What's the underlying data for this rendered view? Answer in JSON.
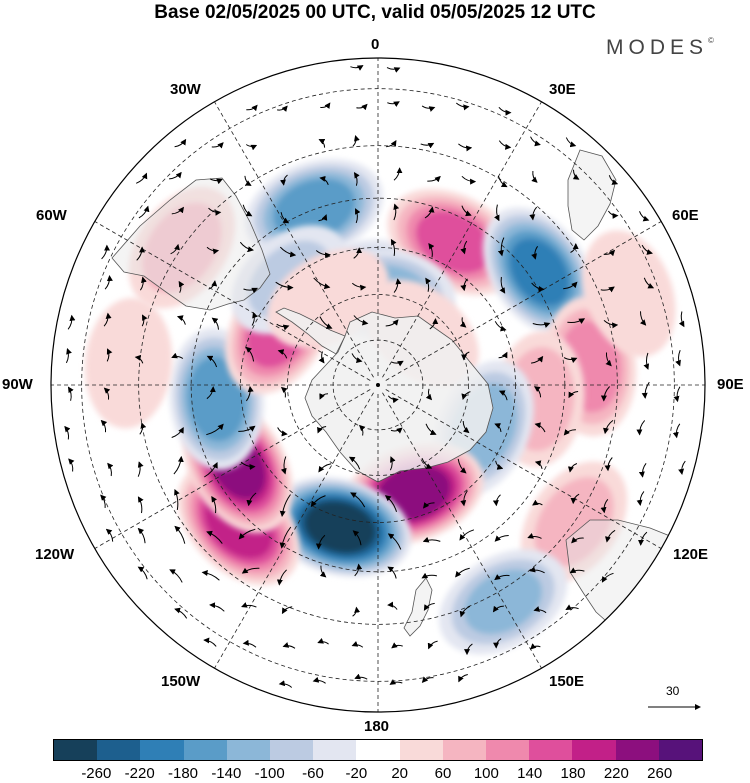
{
  "header": {
    "title": "Base 02/05/2025 00 UTC, valid 05/05/2025 12 UTC",
    "brand": "MODES",
    "brand_mark": "©"
  },
  "map": {
    "projection": "south-polar-stereographic",
    "longitude_labels": {
      "top": "0",
      "top_right": "30E",
      "right_upper": "60E",
      "right": "90E",
      "right_lower": "120E",
      "bottom_right": "150E",
      "bottom": "180",
      "bottom_left": "150W",
      "left_lower": "120W",
      "left": "90W",
      "left_upper": "60W",
      "top_left": "30W"
    },
    "reference_vector": "30"
  },
  "colorbar": {
    "ticks": [
      "-260",
      "-220",
      "-180",
      "-140",
      "-100",
      "-60",
      "-20",
      "20",
      "60",
      "100",
      "140",
      "180",
      "220",
      "260"
    ],
    "colors": [
      "#16405a",
      "#1d5f8e",
      "#2f7fb6",
      "#5a9cc8",
      "#8cb7d8",
      "#bccbe2",
      "#e3e6f1",
      "#ffffff",
      "#f9dad9",
      "#f5b5c1",
      "#ef89ad",
      "#df4f9c",
      "#c22088",
      "#8c0f7e",
      "#57127a"
    ]
  },
  "field": {
    "anomalies": [
      {
        "lon": 340,
        "lat": -50,
        "value": -170
      },
      {
        "lon": 355,
        "lat": -68,
        "value": -110
      },
      {
        "lon": 28,
        "lat": -55,
        "value": 160
      },
      {
        "lon": 5,
        "lat": -70,
        "value": -120
      },
      {
        "lon": 40,
        "lat": -75,
        "value": 60
      },
      {
        "lon": 55,
        "lat": -48,
        "value": -190
      },
      {
        "lon": 85,
        "lat": -45,
        "value": 130
      },
      {
        "lon": 95,
        "lat": -55,
        "value": 90
      },
      {
        "lon": 112,
        "lat": -65,
        "value": -130
      },
      {
        "lon": 125,
        "lat": -40,
        "value": 80
      },
      {
        "lon": 162,
        "lat": -65,
        "value": 250
      },
      {
        "lon": 195,
        "lat": -58,
        "value": -280
      },
      {
        "lon": 225,
        "lat": -48,
        "value": 210
      },
      {
        "lon": 240,
        "lat": -55,
        "value": 230
      },
      {
        "lon": 265,
        "lat": -55,
        "value": -170
      },
      {
        "lon": 300,
        "lat": -65,
        "value": 170
      },
      {
        "lon": 305,
        "lat": -40,
        "value": 80
      },
      {
        "lon": 320,
        "lat": -60,
        "value": -70
      },
      {
        "lon": 330,
        "lat": -68,
        "value": 60
      },
      {
        "lon": 150,
        "lat": -38,
        "value": -110
      },
      {
        "lon": 275,
        "lat": -38,
        "value": 60
      },
      {
        "lon": 70,
        "lat": -35,
        "value": 60
      }
    ]
  }
}
